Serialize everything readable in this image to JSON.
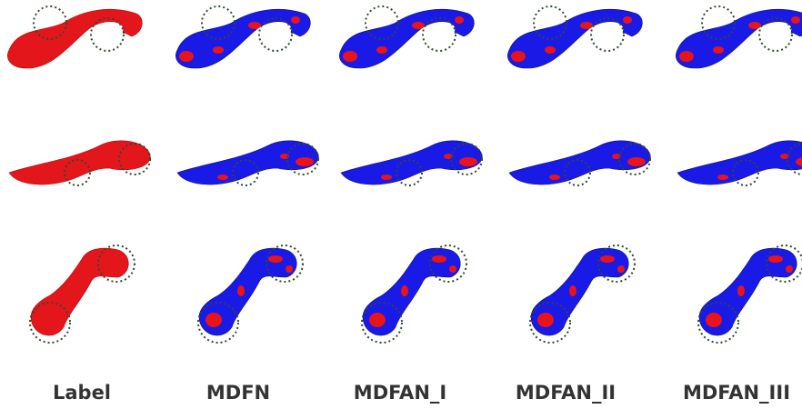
{
  "columns": [
    "Label",
    "MDFN",
    "MDFAN_I",
    "MDFAN_II",
    "MDFAN_III"
  ]
}
